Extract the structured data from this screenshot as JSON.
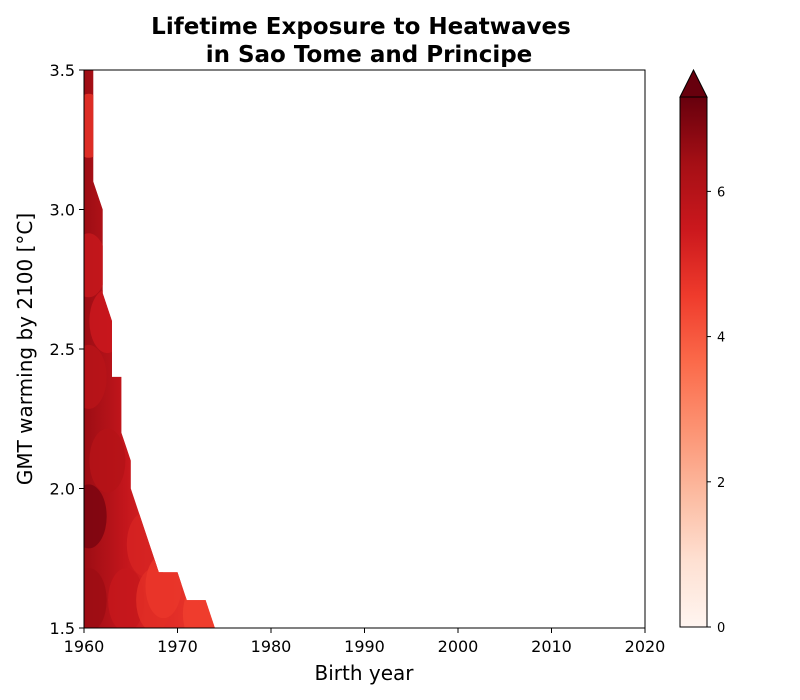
{
  "chart_data": {
    "type": "heatmap",
    "title_line1": "Lifetime Exposure to Heatwaves",
    "title_line2": "in Sao Tome and Principe",
    "xlabel": "Birth year",
    "ylabel": "GMT warming by 2100 [°C]",
    "xlim": [
      1960,
      2020
    ],
    "ylim": [
      1.5,
      3.5
    ],
    "xticks": [
      1960,
      1970,
      1980,
      1990,
      2000,
      2010,
      2020
    ],
    "yticks": [
      1.5,
      2.0,
      2.5,
      3.0,
      3.5
    ],
    "ytick_labels": [
      "1.5",
      "2.0",
      "2.5",
      "3.0",
      "3.5"
    ],
    "colorbar": {
      "min": 0,
      "max": 7.3,
      "extend": "max",
      "ticks": [
        0,
        2,
        4,
        6
      ],
      "colormap": "Reds",
      "colors": [
        "#fff5f0",
        "#fee0d2",
        "#fcbba1",
        "#fc9272",
        "#fb6a4a",
        "#ef3b2c",
        "#cb181d",
        "#a50f15",
        "#67000d"
      ]
    },
    "region": {
      "description": "nonzero exposure extent (filled region); white elsewhere",
      "boundary": [
        {
          "gmt": 1.5,
          "max_birth_year": 1974.0
        },
        {
          "gmt": 1.6,
          "max_birth_year": 1973.0
        },
        {
          "gmt": 1.6,
          "max_birth_year": 1971.0
        },
        {
          "gmt": 1.7,
          "max_birth_year": 1970.0
        },
        {
          "gmt": 1.7,
          "max_birth_year": 1968.0
        },
        {
          "gmt": 2.0,
          "max_birth_year": 1965.0
        },
        {
          "gmt": 2.1,
          "max_birth_year": 1965.0
        },
        {
          "gmt": 2.2,
          "max_birth_year": 1964.0
        },
        {
          "gmt": 2.4,
          "max_birth_year": 1964.0
        },
        {
          "gmt": 2.4,
          "max_birth_year": 1963.0
        },
        {
          "gmt": 2.6,
          "max_birth_year": 1963.0
        },
        {
          "gmt": 2.7,
          "max_birth_year": 1962.0
        },
        {
          "gmt": 3.0,
          "max_birth_year": 1962.0
        },
        {
          "gmt": 3.1,
          "max_birth_year": 1961.0
        },
        {
          "gmt": 3.5,
          "max_birth_year": 1961.0
        }
      ]
    },
    "values_sample": [
      {
        "birth_year": 1960,
        "gmt": 1.9,
        "exposure": 7.0
      },
      {
        "birth_year": 1960,
        "gmt": 1.6,
        "exposure": 6.5
      },
      {
        "birth_year": 1962,
        "gmt": 2.1,
        "exposure": 6.0
      },
      {
        "birth_year": 1964,
        "gmt": 1.6,
        "exposure": 5.6
      },
      {
        "birth_year": 1966,
        "gmt": 1.8,
        "exposure": 5.2
      },
      {
        "birth_year": 1967,
        "gmt": 1.6,
        "exposure": 4.9
      },
      {
        "birth_year": 1968,
        "gmt": 1.65,
        "exposure": 4.7
      },
      {
        "birth_year": 1972,
        "gmt": 1.55,
        "exposure": 4.5
      },
      {
        "birth_year": 1960,
        "gmt": 3.3,
        "exposure": 4.8
      },
      {
        "birth_year": 1960,
        "gmt": 2.8,
        "exposure": 5.6
      },
      {
        "birth_year": 1962,
        "gmt": 2.6,
        "exposure": 5.5
      },
      {
        "birth_year": 1960,
        "gmt": 2.4,
        "exposure": 5.9
      }
    ]
  }
}
